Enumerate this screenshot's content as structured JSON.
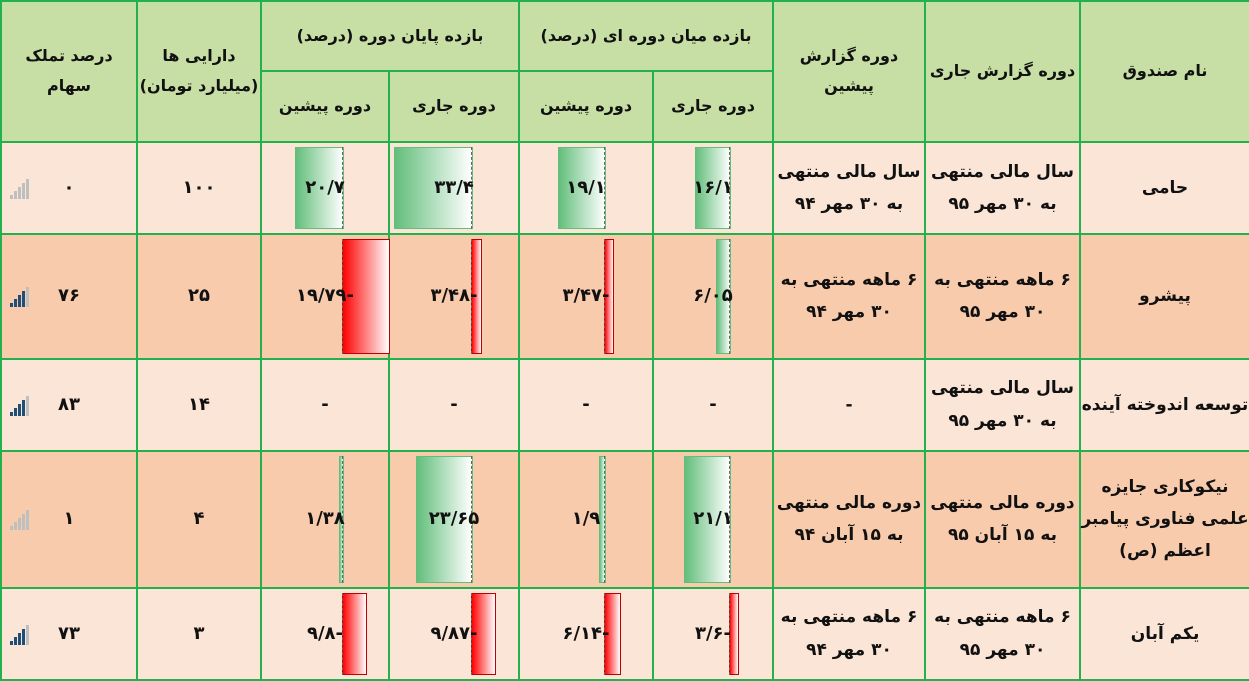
{
  "headers": {
    "fund_name": "نام صندوق",
    "current_period": "دوره گزارش جاری",
    "previous_period": "دوره گزارش پیشین",
    "mid_return": "بازده میان دوره ای (درصد)",
    "end_return": "بازده پایان دوره (درصد)",
    "sub_current": "دوره جاری",
    "sub_previous": "دوره پیشین",
    "assets": "دارایی ها (میلیارد تومان)",
    "ownership": "درصد تملک سهام"
  },
  "rows": [
    {
      "name": "حامی",
      "cur": "سال مالی منتهی به ۳۰ مهر ۹۵",
      "prev": "سال مالی منتهی به ۳۰ مهر ۹۴",
      "mid_cur": {
        "label": "۱۶/۱",
        "value": 16.1
      },
      "mid_prev": {
        "label": "۱۹/۱",
        "value": 19.1
      },
      "end_cur": {
        "label": "۳۳/۴",
        "value": 33.4
      },
      "end_prev": {
        "label": "۲۰/۷",
        "value": 20.7
      },
      "assets": "۱۰۰",
      "own": "۰",
      "own_value": 0
    },
    {
      "name": "پیشرو",
      "cur": "۶ ماهه منتهی به ۳۰ مهر ۹۵",
      "prev": "۶ ماهه منتهی به ۳۰ مهر ۹۴",
      "mid_cur": {
        "label": "۶/۰۵",
        "value": 6.05
      },
      "mid_prev": {
        "label": "-۳/۴۷",
        "value": -3.47
      },
      "end_cur": {
        "label": "-۳/۴۸",
        "value": -3.48
      },
      "end_prev": {
        "label": "-۱۹/۷۹",
        "value": -19.79
      },
      "assets": "۲۵",
      "own": "۷۶",
      "own_value": 76
    },
    {
      "name": "توسعه اندوخته آینده",
      "cur": "سال مالی منتهی به ۳۰ مهر ۹۵",
      "prev": "-",
      "mid_cur": {
        "label": "-",
        "value": null
      },
      "mid_prev": {
        "label": "-",
        "value": null
      },
      "end_cur": {
        "label": "-",
        "value": null
      },
      "end_prev": {
        "label": "-",
        "value": null
      },
      "assets": "۱۴",
      "own": "۸۳",
      "own_value": 83
    },
    {
      "name": "نیکوکاری جایزه علمی فناوری پیامبر اعظم (ص)",
      "cur": "دوره مالی منتهی به ۱۵ آبان ۹۵",
      "prev": "دوره مالی منتهی به ۱۵ آبان ۹۴",
      "mid_cur": {
        "label": "۲۱/۱",
        "value": 21.1
      },
      "mid_prev": {
        "label": "۱/۹",
        "value": 1.9
      },
      "end_cur": {
        "label": "۲۳/۶۵",
        "value": 23.65
      },
      "end_prev": {
        "label": "۱/۳۸",
        "value": 1.38
      },
      "assets": "۴",
      "own": "۱",
      "own_value": 1
    },
    {
      "name": "یکم آبان",
      "cur": "۶ ماهه منتهی به ۳۰ مهر ۹۵",
      "prev": "۶ ماهه منتهی به ۳۰ مهر ۹۴",
      "mid_cur": {
        "label": "-۳/۶",
        "value": -3.6
      },
      "mid_prev": {
        "label": "-۶/۱۴",
        "value": -6.14
      },
      "end_cur": {
        "label": "-۹/۸۷",
        "value": -9.87
      },
      "end_prev": {
        "label": "-۹/۸",
        "value": -9.8
      },
      "assets": "۳",
      "own": "۷۳",
      "own_value": 73
    }
  ],
  "colors": {
    "positive": "#63be7b",
    "negative": "#ff0000",
    "border": "#22b14c",
    "header": "#c7dfa5"
  }
}
